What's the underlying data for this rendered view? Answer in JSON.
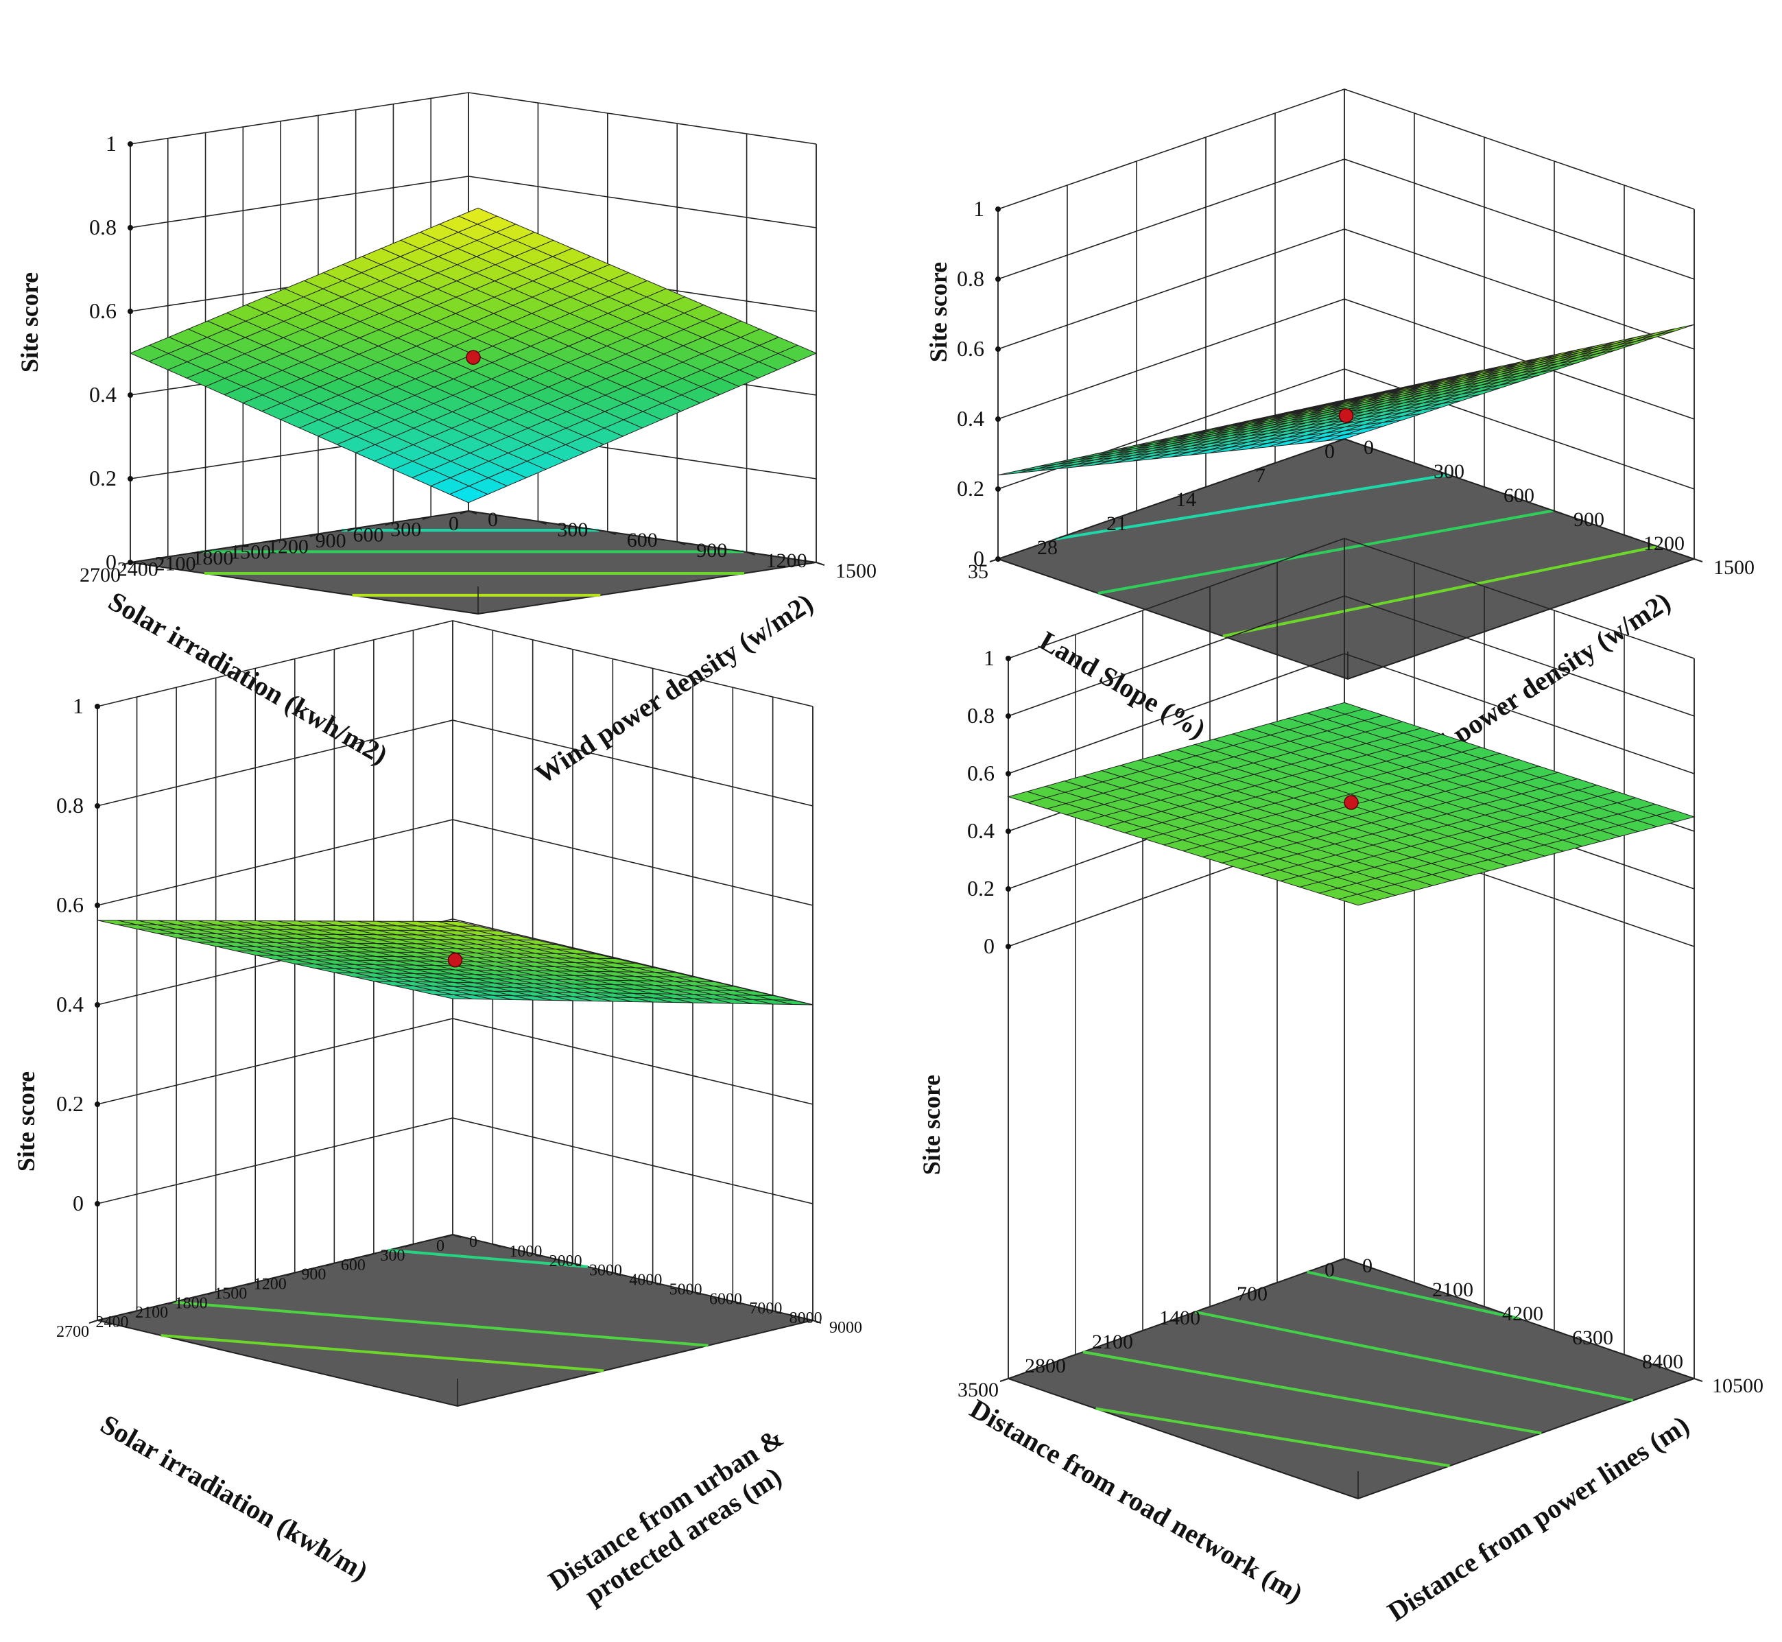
{
  "colors": {
    "floor": "#5a5a5a",
    "mesh_line": "#222222",
    "center_point": "#c8141a",
    "colormap": [
      "#00e5ff",
      "#1ed8a8",
      "#2fcd5a",
      "#6cd62a",
      "#b5e31a",
      "#f0ee1e"
    ]
  },
  "chart_data": [
    {
      "type": "surface",
      "zlabel": "Site score",
      "zlim": [
        0,
        1
      ],
      "zticks": [
        "0",
        "0.2",
        "0.4",
        "0.6",
        "0.8",
        "1"
      ],
      "xlabel": "Wind power density (w/m2)",
      "xticks": [
        "0",
        "300",
        "600",
        "900",
        "1200",
        "1500"
      ],
      "xrange": [
        0,
        1500
      ],
      "ylabel": "Solar irradiation (kwh/m2)",
      "yticks": [
        "0",
        "300",
        "600",
        "900",
        "1200",
        "1500",
        "1800",
        "2100",
        "2400",
        "2700"
      ],
      "yrange": [
        0,
        2700
      ],
      "corners": {
        "x0y0": 0.02,
        "x1y0": 0.5,
        "x0y1": 0.5,
        "x1y1": 0.97
      },
      "center_point": {
        "x": 750,
        "y": 1350,
        "z": 0.49
      },
      "contours": [
        0.2,
        0.4,
        0.6,
        0.8
      ]
    },
    {
      "type": "surface",
      "zlabel": "Site score",
      "zlim": [
        0,
        1
      ],
      "zticks": [
        "0",
        "0.2",
        "0.4",
        "0.6",
        "0.8",
        "1"
      ],
      "xlabel": "Wind power density (w/m2)",
      "xticks": [
        "0",
        "300",
        "600",
        "900",
        "1200",
        "1500"
      ],
      "xrange": [
        0,
        1500
      ],
      "ylabel": "Land Slope (%)",
      "yticks": [
        "0",
        "7",
        "14",
        "21",
        "28",
        "35"
      ],
      "yrange": [
        0,
        35
      ],
      "corners": {
        "x0y0": 0.0,
        "x1y0": 0.67,
        "x0y1": 0.24,
        "x1y1": 0.8
      },
      "center_point": {
        "x": 750,
        "y": 17.5,
        "z": 0.41
      },
      "contours": [
        0.2,
        0.4,
        0.6
      ]
    },
    {
      "type": "surface",
      "zlabel": "Site score",
      "zlim": [
        0,
        1
      ],
      "zticks": [
        "0",
        "0.2",
        "0.4",
        "0.6",
        "0.8",
        "1"
      ],
      "xlabel": "Distance from urban & protected areas (m)",
      "xlabel_lines": [
        "Distance from urban &",
        "protected areas (m)"
      ],
      "xticks": [
        "0",
        "1000",
        "2000",
        "3000",
        "4000",
        "5000",
        "6000",
        "7000",
        "8000",
        "9000"
      ],
      "xrange": [
        0,
        9000
      ],
      "ylabel": "Solar irradiation (kwh/m)",
      "yticks": [
        "0",
        "300",
        "600",
        "900",
        "1200",
        "1500",
        "1800",
        "2100",
        "2400",
        "2700"
      ],
      "yrange": [
        0,
        2700
      ],
      "corners": {
        "x0y0": 0.24,
        "x1y0": 0.4,
        "x0y1": 0.57,
        "x1y1": 0.74
      },
      "center_point": {
        "x": 4500,
        "y": 1350,
        "z": 0.49
      },
      "contours": [
        0.3,
        0.4,
        0.5,
        0.6
      ]
    },
    {
      "type": "surface",
      "zlabel": "Site score",
      "zlim": [
        0,
        1
      ],
      "zticks": [
        "0",
        "0.2",
        "0.4",
        "0.6",
        "0.8",
        "1"
      ],
      "xlabel": "Distance from power lines (m)",
      "xticks": [
        "0",
        "2100",
        "4200",
        "6300",
        "8400",
        "10500"
      ],
      "xrange": [
        0,
        10500
      ],
      "ylabel": "Distance from road network (m)",
      "yticks": [
        "0",
        "700",
        "1400",
        "2100",
        "2800",
        "3500"
      ],
      "yrange": [
        0,
        3500
      ],
      "corners": {
        "x0y0": 0.43,
        "x1y0": 0.45,
        "x0y1": 0.52,
        "x1y1": 0.56
      },
      "center_point": {
        "x": 5250,
        "y": 1750,
        "z": 0.5
      },
      "contours": [
        0.44,
        0.47,
        0.5,
        0.53
      ]
    }
  ]
}
